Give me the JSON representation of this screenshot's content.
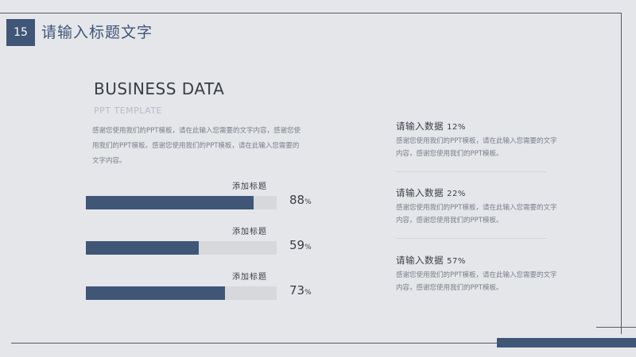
{
  "slide": {
    "page_number": "15",
    "title": "请输入标题文字"
  },
  "left": {
    "title": "BUSINESS DATA",
    "subtitle": "PPT TEMPLATE",
    "description": "感谢您使用我们的PPT模板，请在此输入您需要的文字内容，感谢您使用我们的PPT模板。感谢您使用我们的PPT模板，请在此输入您需要的文字内容。",
    "bars": [
      {
        "label": "添加标题",
        "value": 88,
        "value_text": "88",
        "unit": "%"
      },
      {
        "label": "添加标题",
        "value": 59,
        "value_text": "59",
        "unit": "%"
      },
      {
        "label": "添加标题",
        "value": 73,
        "value_text": "73",
        "unit": "%"
      }
    ]
  },
  "right": {
    "items": [
      {
        "heading": "请输入数据",
        "pct": "12%",
        "text": "感谢您使用我们的PPT模板，请在此输入您需要的文字内容，感谢您使用我们的PPT模板。"
      },
      {
        "heading": "请输入数据",
        "pct": "22%",
        "text": "感谢您使用我们的PPT模板，请在此输入您需要的文字内容，感谢您使用我们的PPT模板。"
      },
      {
        "heading": "请输入数据",
        "pct": "57%",
        "text": "感谢您使用我们的PPT模板，请在此输入您需要的文字内容，感谢您使用我们的PPT模板。"
      }
    ]
  },
  "colors": {
    "accent": "#3f5677",
    "background": "#e4e6ea",
    "bar_track": "#d6d8dc"
  }
}
